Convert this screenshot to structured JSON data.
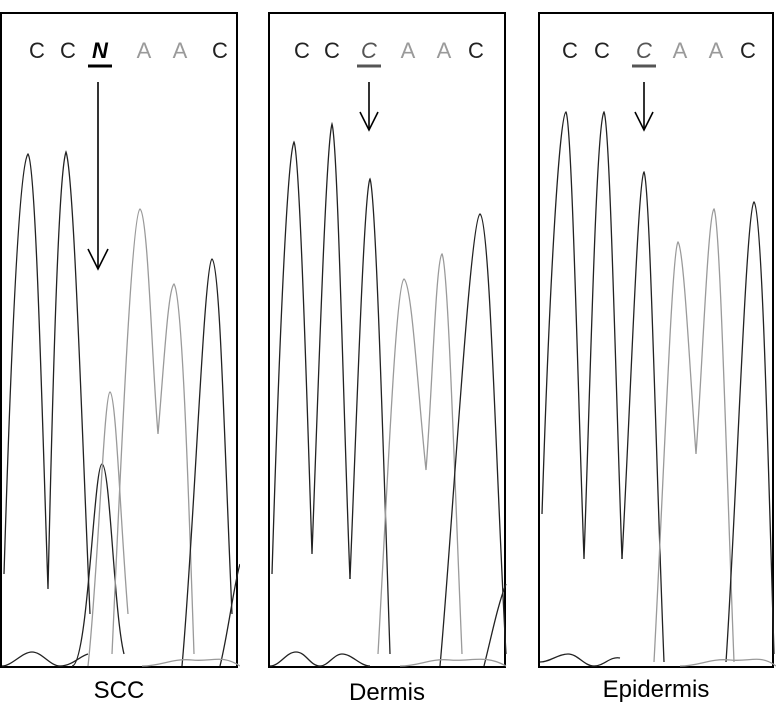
{
  "panels": [
    {
      "caption": "SCC",
      "bases": [
        {
          "letter": "C",
          "shade": "dark"
        },
        {
          "letter": "C",
          "shade": "dark"
        },
        {
          "letter": "N",
          "shade": "black",
          "italic": true,
          "underline": true,
          "highlight": true
        },
        {
          "letter": "A",
          "shade": "light"
        },
        {
          "letter": "A",
          "shade": "light"
        },
        {
          "letter": "C",
          "shade": "dark"
        }
      ]
    },
    {
      "caption": "Dermis",
      "bases": [
        {
          "letter": "C",
          "shade": "dark"
        },
        {
          "letter": "C",
          "shade": "dark"
        },
        {
          "letter": "C",
          "shade": "dark",
          "italic": true,
          "underline": true,
          "highlight": true
        },
        {
          "letter": "A",
          "shade": "light"
        },
        {
          "letter": "A",
          "shade": "light"
        },
        {
          "letter": "C",
          "shade": "dark"
        }
      ]
    },
    {
      "caption": "Epidermis",
      "bases": [
        {
          "letter": "C",
          "shade": "dark"
        },
        {
          "letter": "C",
          "shade": "dark"
        },
        {
          "letter": "C",
          "shade": "dark",
          "italic": true,
          "underline": true,
          "highlight": true
        },
        {
          "letter": "A",
          "shade": "light"
        },
        {
          "letter": "A",
          "shade": "light"
        },
        {
          "letter": "C",
          "shade": "dark"
        }
      ]
    }
  ],
  "colors": {
    "dark": "#222222",
    "light": "#9a9a9a",
    "black": "#000000",
    "frame": "#000000"
  }
}
